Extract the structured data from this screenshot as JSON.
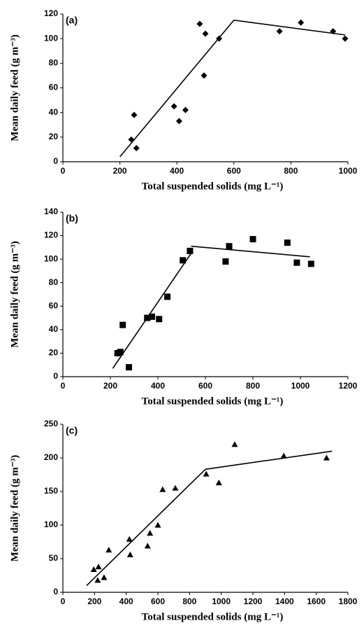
{
  "chart_data": [
    {
      "type": "scatter",
      "label": "(a)",
      "x_label": "Total suspended solids (mg L⁻¹)",
      "y_label": "Mean daily feed (g m⁻³)",
      "xlim": [
        0,
        1000
      ],
      "ylim": [
        0,
        120
      ],
      "xticks": [
        0,
        200,
        400,
        600,
        800,
        1000
      ],
      "yticks": [
        0,
        20,
        40,
        60,
        80,
        100,
        120
      ],
      "marker": "diamond",
      "color": "#000000",
      "x": [
        240,
        250,
        258,
        390,
        408,
        430,
        480,
        495,
        500,
        548,
        760,
        835,
        948,
        990
      ],
      "y": [
        18,
        38,
        11,
        45,
        33,
        42,
        112,
        70,
        104,
        100,
        106,
        113,
        106,
        100
      ],
      "fit": [
        {
          "x": [
            200,
            600
          ],
          "y": [
            4,
            115
          ]
        },
        {
          "x": [
            600,
            990
          ],
          "y": [
            115,
            103
          ]
        }
      ]
    },
    {
      "type": "scatter",
      "label": "(b)",
      "x_label": "Total suspended solids (mg L⁻¹)",
      "y_label": "Mean daily feed (g m⁻³)",
      "xlim": [
        0,
        1200
      ],
      "ylim": [
        0,
        140
      ],
      "xticks": [
        0,
        200,
        400,
        600,
        800,
        1000,
        1200
      ],
      "yticks": [
        0,
        20,
        40,
        60,
        80,
        100,
        120,
        140
      ],
      "marker": "square",
      "color": "#000000",
      "x": [
        230,
        242,
        252,
        278,
        355,
        375,
        405,
        440,
        505,
        535,
        685,
        700,
        800,
        945,
        985,
        1045
      ],
      "y": [
        20,
        21,
        44,
        8,
        50,
        51,
        49,
        68,
        99,
        107,
        98,
        111,
        117,
        114,
        97,
        96
      ],
      "fit": [
        {
          "x": [
            210,
            540
          ],
          "y": [
            7,
            105
          ]
        },
        {
          "x": [
            540,
            1040
          ],
          "y": [
            111,
            102
          ]
        }
      ]
    },
    {
      "type": "scatter",
      "label": "(c)",
      "x_label": "Total suspended solids (mg L⁻¹)",
      "y_label": "Mean daily feed (g m⁻³)",
      "xlim": [
        0,
        1800
      ],
      "ylim": [
        0,
        250
      ],
      "xticks": [
        0,
        200,
        400,
        600,
        800,
        1000,
        1200,
        1400,
        1600,
        1800
      ],
      "yticks": [
        0,
        50,
        100,
        150,
        200,
        250
      ],
      "marker": "triangle",
      "color": "#000000",
      "x": [
        195,
        220,
        225,
        260,
        290,
        420,
        425,
        535,
        550,
        600,
        630,
        710,
        905,
        985,
        1085,
        1395,
        1665
      ],
      "y": [
        34,
        18,
        38,
        22,
        63,
        79,
        56,
        69,
        88,
        100,
        153,
        155,
        176,
        163,
        220,
        203,
        200
      ],
      "fit": [
        {
          "x": [
            150,
            900
          ],
          "y": [
            10,
            183
          ]
        },
        {
          "x": [
            900,
            1700
          ],
          "y": [
            183,
            210
          ]
        }
      ]
    }
  ]
}
